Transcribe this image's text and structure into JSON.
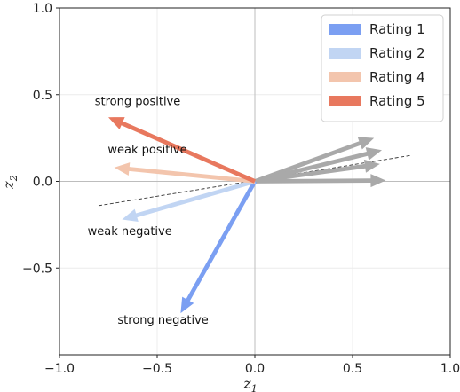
{
  "chart_data": {
    "type": "vector",
    "title": "",
    "xlabel": "z",
    "xlabel_sub": "1",
    "ylabel": "z",
    "ylabel_sub": "2",
    "xlim": [
      -1.0,
      1.0
    ],
    "ylim": [
      -1.0,
      1.0
    ],
    "xticks": [
      -1.0,
      -0.5,
      0.0,
      0.5,
      1.0
    ],
    "yticks": [
      -0.5,
      0.0,
      0.5,
      1.0
    ],
    "xtick_labels": [
      "−1.0",
      "−0.5",
      "0.0",
      "0.5",
      "1.0"
    ],
    "ytick_labels": [
      "−0.5",
      "0.0",
      "0.5",
      "1.0"
    ],
    "grid": true,
    "legend_position": "top-right",
    "series": [
      {
        "name": "Rating 1",
        "color": "#7b9ff2",
        "vectors": [
          [
            -0.38,
            -0.76
          ]
        ]
      },
      {
        "name": "Rating 2",
        "color": "#c1d5f3",
        "vectors": [
          [
            -0.68,
            -0.22
          ]
        ]
      },
      {
        "name": "Rating 4",
        "color": "#f3c5ad",
        "vectors": [
          [
            -0.72,
            0.08
          ]
        ]
      },
      {
        "name": "Rating 5",
        "color": "#e8785e",
        "vectors": [
          [
            -0.75,
            0.37
          ]
        ]
      }
    ],
    "gray_vectors": {
      "color": "#a9a9a9",
      "vectors": [
        [
          0.61,
          0.25
        ],
        [
          0.65,
          0.18
        ],
        [
          0.64,
          0.1
        ],
        [
          0.67,
          0.005
        ]
      ]
    },
    "dashed_line": {
      "from": [
        -0.8,
        -0.14
      ],
      "to": [
        0.8,
        0.15
      ]
    },
    "annotations": [
      {
        "text": "strong positive",
        "x": -0.6,
        "y": 0.44
      },
      {
        "text": "weak positive",
        "x": -0.55,
        "y": 0.16
      },
      {
        "text": "weak negative",
        "x": -0.64,
        "y": -0.31
      },
      {
        "text": "strong negative",
        "x": -0.47,
        "y": -0.82
      }
    ]
  }
}
